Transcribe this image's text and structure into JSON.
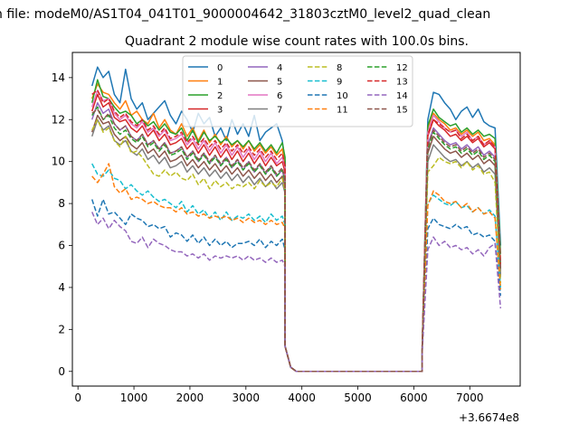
{
  "figure": {
    "suptitle": "n file: modeM0/AS1T04_041T01_9000004642_31803cztM0_level2_quad_clean",
    "offset_label": "+3.6674e8"
  },
  "chart_data": {
    "type": "line",
    "title": "Quadrant 2 module wise count rates with 100.0s bins.",
    "xlabel": "",
    "ylabel": "",
    "xlim": [
      -100,
      7900
    ],
    "ylim": [
      -0.7,
      15.2
    ],
    "x_ticks": [
      0,
      1000,
      2000,
      3000,
      4000,
      5000,
      6000,
      7000
    ],
    "y_ticks": [
      0,
      2,
      4,
      6,
      8,
      10,
      12,
      14
    ],
    "x_tick_labels": [
      "0",
      "1000",
      "2000",
      "3000",
      "4000",
      "5000",
      "6000",
      "7000"
    ],
    "y_tick_labels": [
      "0",
      "2",
      "4",
      "6",
      "8",
      "10",
      "12",
      "14"
    ],
    "legend_location": "upper center",
    "legend_columns": 4,
    "gap": {
      "x": [
        3700,
        3800,
        3900,
        4000,
        4100,
        4200,
        4300,
        4400,
        4500,
        4600,
        4700,
        4800,
        4900,
        5000,
        5100,
        5200,
        5300,
        5400,
        5500,
        5600,
        5700,
        5800,
        5900,
        6000,
        6100,
        6150
      ],
      "y": [
        1.2,
        0.2,
        0.0,
        0.0,
        0.0,
        0.0,
        0.0,
        0.0,
        0.0,
        0.0,
        0.0,
        0.0,
        0.0,
        0.0,
        0.0,
        0.0,
        0.0,
        0.0,
        0.0,
        0.0,
        0.0,
        0.0,
        0.0,
        0.0,
        0.0,
        0.0
      ]
    },
    "x": [
      250,
      350,
      450,
      550,
      650,
      750,
      850,
      950,
      1050,
      1150,
      1250,
      1350,
      1450,
      1550,
      1650,
      1750,
      1850,
      1950,
      2050,
      2150,
      2250,
      2350,
      2450,
      2550,
      2650,
      2750,
      2850,
      2950,
      3050,
      3150,
      3250,
      3350,
      3450,
      3550,
      3650,
      3700,
      6150,
      6250,
      6350,
      6450,
      6550,
      6650,
      6750,
      6850,
      6950,
      7050,
      7150,
      7250,
      7350,
      7450,
      7550
    ],
    "series": [
      {
        "name": "0",
        "color": "#1f77b4",
        "dash": "solid",
        "values": [
          13.6,
          14.5,
          14.0,
          14.3,
          13.2,
          12.8,
          14.4,
          13.0,
          12.5,
          12.8,
          12.0,
          12.3,
          12.6,
          12.9,
          12.2,
          11.8,
          12.4,
          12.0,
          11.4,
          12.3,
          11.8,
          12.1,
          11.2,
          11.6,
          11.0,
          12.0,
          11.3,
          11.8,
          11.2,
          12.2,
          11.0,
          11.4,
          11.6,
          11.8,
          11.0,
          10.0,
          1.2,
          12.0,
          13.3,
          13.2,
          12.8,
          12.5,
          12.0,
          12.4,
          12.6,
          12.1,
          12.5,
          11.9,
          11.7,
          11.6,
          6.0
        ]
      },
      {
        "name": "1",
        "color": "#ff7f0e",
        "dash": "solid",
        "values": [
          13.0,
          13.7,
          13.3,
          13.2,
          12.8,
          12.5,
          12.9,
          12.2,
          12.4,
          12.0,
          11.8,
          12.3,
          11.6,
          12.0,
          11.5,
          11.3,
          11.8,
          11.2,
          11.6,
          11.0,
          11.5,
          10.9,
          11.3,
          10.8,
          11.2,
          10.7,
          11.0,
          10.6,
          11.0,
          10.5,
          10.8,
          10.4,
          10.7,
          10.3,
          10.6,
          9.8,
          1.2,
          11.6,
          12.3,
          12.0,
          11.8,
          11.5,
          11.6,
          11.3,
          11.5,
          11.2,
          11.4,
          11.0,
          11.1,
          10.8,
          5.2
        ]
      },
      {
        "name": "2",
        "color": "#2ca02c",
        "dash": "solid",
        "values": [
          12.8,
          13.9,
          13.1,
          13.0,
          12.6,
          12.3,
          12.4,
          12.2,
          11.8,
          12.0,
          11.7,
          11.9,
          11.5,
          11.8,
          11.4,
          11.3,
          11.6,
          11.0,
          11.5,
          10.9,
          11.4,
          11.0,
          11.2,
          10.9,
          11.1,
          10.8,
          11.0,
          10.7,
          11.0,
          10.6,
          10.9,
          10.5,
          10.8,
          10.4,
          10.9,
          10.2,
          1.2,
          11.7,
          12.5,
          12.1,
          11.9,
          11.7,
          11.8,
          11.4,
          11.6,
          11.3,
          11.5,
          11.2,
          11.3,
          11.1,
          5.6
        ]
      },
      {
        "name": "3",
        "color": "#d62728",
        "dash": "solid",
        "values": [
          12.4,
          13.2,
          12.6,
          12.8,
          12.1,
          11.9,
          12.0,
          11.6,
          11.4,
          11.7,
          11.2,
          11.5,
          11.0,
          11.3,
          10.8,
          10.9,
          11.1,
          10.6,
          10.9,
          10.4,
          10.8,
          10.3,
          10.7,
          10.2,
          10.6,
          10.1,
          10.5,
          10.0,
          10.4,
          9.9,
          10.3,
          9.8,
          10.2,
          9.8,
          10.0,
          9.5,
          1.2,
          11.2,
          12.0,
          11.7,
          11.5,
          11.2,
          11.3,
          11.0,
          11.2,
          10.9,
          11.1,
          10.7,
          10.9,
          10.6,
          5.0
        ]
      },
      {
        "name": "4",
        "color": "#9467bd",
        "dash": "solid",
        "values": [
          12.0,
          12.8,
          12.3,
          12.5,
          11.8,
          11.5,
          11.7,
          11.2,
          11.0,
          11.3,
          10.8,
          11.0,
          10.6,
          10.9,
          10.4,
          10.5,
          10.7,
          10.2,
          10.5,
          10.0,
          10.4,
          9.9,
          10.3,
          9.8,
          10.2,
          9.7,
          10.1,
          9.6,
          10.0,
          9.5,
          9.9,
          9.4,
          9.8,
          9.3,
          9.6,
          9.0,
          1.1,
          10.8,
          11.6,
          11.3,
          11.0,
          10.8,
          10.9,
          10.6,
          10.8,
          10.5,
          10.7,
          10.3,
          10.5,
          10.2,
          4.8
        ]
      },
      {
        "name": "5",
        "color": "#8c564b",
        "dash": "solid",
        "values": [
          11.4,
          12.2,
          11.8,
          11.9,
          11.3,
          11.0,
          11.2,
          10.8,
          10.6,
          10.9,
          10.4,
          10.6,
          10.2,
          10.5,
          10.0,
          10.1,
          10.3,
          9.8,
          10.1,
          9.7,
          10.0,
          9.6,
          9.9,
          9.5,
          9.8,
          9.4,
          9.7,
          9.3,
          9.6,
          9.2,
          9.5,
          9.1,
          9.4,
          9.0,
          9.3,
          8.8,
          1.1,
          10.4,
          11.2,
          10.9,
          10.6,
          10.4,
          10.5,
          10.2,
          10.4,
          10.1,
          10.3,
          9.9,
          10.1,
          9.8,
          4.6
        ]
      },
      {
        "name": "6",
        "color": "#e377c2",
        "dash": "solid",
        "values": [
          12.6,
          13.4,
          12.9,
          13.0,
          12.3,
          12.0,
          12.2,
          11.8,
          11.6,
          11.9,
          11.4,
          11.6,
          11.2,
          11.5,
          11.0,
          11.1,
          11.3,
          10.8,
          11.1,
          10.6,
          11.0,
          10.5,
          10.9,
          10.4,
          10.8,
          10.3,
          10.7,
          10.2,
          10.6,
          10.1,
          10.5,
          10.0,
          10.4,
          9.9,
          10.2,
          9.7,
          1.2,
          11.4,
          12.2,
          11.9,
          11.6,
          11.4,
          11.5,
          11.2,
          11.4,
          11.0,
          11.2,
          10.8,
          11.0,
          10.7,
          5.0
        ]
      },
      {
        "name": "7",
        "color": "#7f7f7f",
        "dash": "solid",
        "values": [
          11.2,
          12.0,
          11.5,
          11.7,
          11.0,
          10.8,
          11.0,
          10.5,
          10.3,
          10.6,
          10.1,
          10.3,
          9.9,
          10.2,
          9.7,
          9.8,
          10.0,
          9.5,
          9.8,
          9.4,
          9.7,
          9.3,
          9.6,
          9.2,
          9.5,
          9.1,
          9.4,
          9.0,
          9.3,
          8.9,
          9.2,
          8.8,
          9.1,
          8.7,
          9.0,
          8.5,
          1.1,
          10.0,
          10.8,
          10.5,
          10.2,
          10.0,
          10.1,
          9.8,
          10.0,
          9.7,
          9.9,
          9.5,
          9.7,
          9.4,
          4.5
        ]
      },
      {
        "name": "8",
        "color": "#bcbd22",
        "dash": "dashed",
        "values": [
          11.5,
          12.0,
          11.4,
          11.6,
          11.0,
          10.7,
          11.2,
          10.4,
          10.5,
          10.2,
          9.8,
          9.4,
          9.3,
          9.6,
          9.3,
          9.5,
          9.2,
          9.1,
          9.4,
          8.9,
          9.2,
          8.7,
          9.1,
          8.8,
          9.0,
          8.7,
          8.9,
          8.8,
          9.0,
          8.7,
          9.1,
          8.8,
          9.0,
          8.8,
          9.2,
          8.6,
          1.1,
          9.5,
          9.8,
          10.2,
          10.0,
          9.9,
          10.0,
          9.7,
          10.0,
          9.6,
          9.8,
          9.4,
          9.5,
          9.0,
          4.2
        ]
      },
      {
        "name": "9",
        "color": "#17becf",
        "dash": "dashed",
        "values": [
          9.9,
          9.4,
          9.3,
          9.6,
          9.2,
          9.1,
          8.7,
          8.9,
          8.6,
          8.4,
          8.6,
          8.3,
          8.1,
          8.2,
          8.0,
          7.8,
          8.1,
          7.6,
          7.9,
          7.5,
          7.7,
          7.3,
          7.6,
          7.2,
          7.6,
          7.2,
          7.4,
          7.3,
          7.5,
          7.2,
          7.4,
          7.1,
          7.5,
          7.2,
          7.4,
          7.0,
          1.0,
          8.0,
          8.4,
          8.2,
          8.0,
          7.9,
          8.1,
          7.8,
          7.9,
          7.6,
          7.8,
          7.5,
          7.7,
          7.4,
          4.0
        ]
      },
      {
        "name": "10",
        "color": "#1f77b4",
        "dash": "dashed",
        "values": [
          8.2,
          7.4,
          8.2,
          7.5,
          7.6,
          7.3,
          7.0,
          7.5,
          7.3,
          7.2,
          6.9,
          7.0,
          6.8,
          6.9,
          6.4,
          6.6,
          6.5,
          6.2,
          6.5,
          6.1,
          6.4,
          6.0,
          6.3,
          6.0,
          6.2,
          5.9,
          6.1,
          6.1,
          6.2,
          6.0,
          6.3,
          5.9,
          6.2,
          6.0,
          6.3,
          5.8,
          1.0,
          6.8,
          7.3,
          7.0,
          6.9,
          6.8,
          7.0,
          6.8,
          6.9,
          6.5,
          6.6,
          6.4,
          6.5,
          6.2,
          3.6
        ]
      },
      {
        "name": "11",
        "color": "#ff7f0e",
        "dash": "dashed",
        "values": [
          9.3,
          9.0,
          9.4,
          9.9,
          8.8,
          8.5,
          8.7,
          8.2,
          8.3,
          8.2,
          8.0,
          8.1,
          7.9,
          7.8,
          7.8,
          7.6,
          7.8,
          7.5,
          7.6,
          7.4,
          7.5,
          7.3,
          7.4,
          7.3,
          7.4,
          7.2,
          7.3,
          7.1,
          7.3,
          7.1,
          7.2,
          7.0,
          7.2,
          7.0,
          7.1,
          6.8,
          1.0,
          7.9,
          8.6,
          8.4,
          8.1,
          8.0,
          8.1,
          7.8,
          8.0,
          7.6,
          7.8,
          7.5,
          7.6,
          7.3,
          3.9
        ]
      },
      {
        "name": "12",
        "color": "#2ca02c",
        "dash": "dashed",
        "values": [
          12.2,
          12.6,
          12.0,
          12.2,
          11.6,
          11.3,
          11.5,
          11.1,
          10.9,
          11.2,
          10.7,
          10.9,
          10.5,
          10.8,
          10.3,
          10.4,
          10.6,
          10.1,
          10.4,
          10.0,
          10.3,
          9.9,
          10.2,
          9.8,
          10.1,
          9.7,
          10.0,
          9.6,
          9.9,
          9.5,
          9.8,
          9.4,
          9.7,
          9.3,
          9.6,
          9.1,
          1.1,
          10.6,
          11.4,
          11.1,
          10.8,
          10.6,
          10.7,
          10.4,
          10.6,
          10.3,
          10.5,
          10.1,
          10.3,
          10.0,
          4.9
        ]
      },
      {
        "name": "13",
        "color": "#d62728",
        "dash": "dashed",
        "values": [
          13.2,
          13.4,
          12.8,
          13.0,
          12.4,
          12.1,
          12.3,
          11.9,
          11.7,
          12.0,
          11.5,
          11.7,
          11.3,
          11.6,
          11.1,
          11.2,
          11.4,
          10.9,
          11.2,
          10.8,
          11.1,
          10.7,
          11.0,
          10.6,
          10.9,
          10.5,
          10.8,
          10.4,
          10.7,
          10.3,
          10.6,
          10.2,
          10.5,
          10.1,
          10.4,
          9.8,
          1.2,
          11.3,
          12.0,
          11.8,
          11.6,
          11.4,
          11.5,
          11.1,
          11.3,
          11.0,
          11.2,
          10.8,
          11.0,
          10.7,
          5.1
        ]
      },
      {
        "name": "14",
        "color": "#9467bd",
        "dash": "dashed",
        "values": [
          7.6,
          7.0,
          7.3,
          6.8,
          7.2,
          6.9,
          6.7,
          6.2,
          6.1,
          6.4,
          5.9,
          6.3,
          6.1,
          6.0,
          5.8,
          5.7,
          5.7,
          5.5,
          5.6,
          5.4,
          5.6,
          5.3,
          5.5,
          5.4,
          5.5,
          5.4,
          5.5,
          5.3,
          5.5,
          5.3,
          5.4,
          5.2,
          5.4,
          5.2,
          5.3,
          5.0,
          0.9,
          5.8,
          6.4,
          6.0,
          6.2,
          5.9,
          6.0,
          5.8,
          5.9,
          5.6,
          5.8,
          5.5,
          5.9,
          6.1,
          3.0
        ]
      },
      {
        "name": "15",
        "color": "#8c564b",
        "dash": "dashed",
        "values": [
          12.3,
          12.5,
          12.0,
          12.3,
          11.8,
          11.5,
          11.7,
          11.2,
          11.0,
          11.3,
          10.8,
          11.0,
          10.6,
          10.9,
          10.4,
          10.5,
          10.7,
          10.2,
          10.5,
          10.1,
          10.4,
          10.0,
          10.3,
          9.9,
          10.2,
          9.8,
          10.1,
          9.7,
          10.0,
          9.6,
          9.9,
          9.5,
          9.8,
          9.4,
          9.7,
          9.2,
          1.1,
          10.7,
          11.5,
          11.2,
          10.9,
          10.7,
          10.8,
          10.5,
          10.7,
          10.4,
          10.6,
          10.2,
          10.4,
          10.1,
          4.9
        ]
      }
    ]
  }
}
